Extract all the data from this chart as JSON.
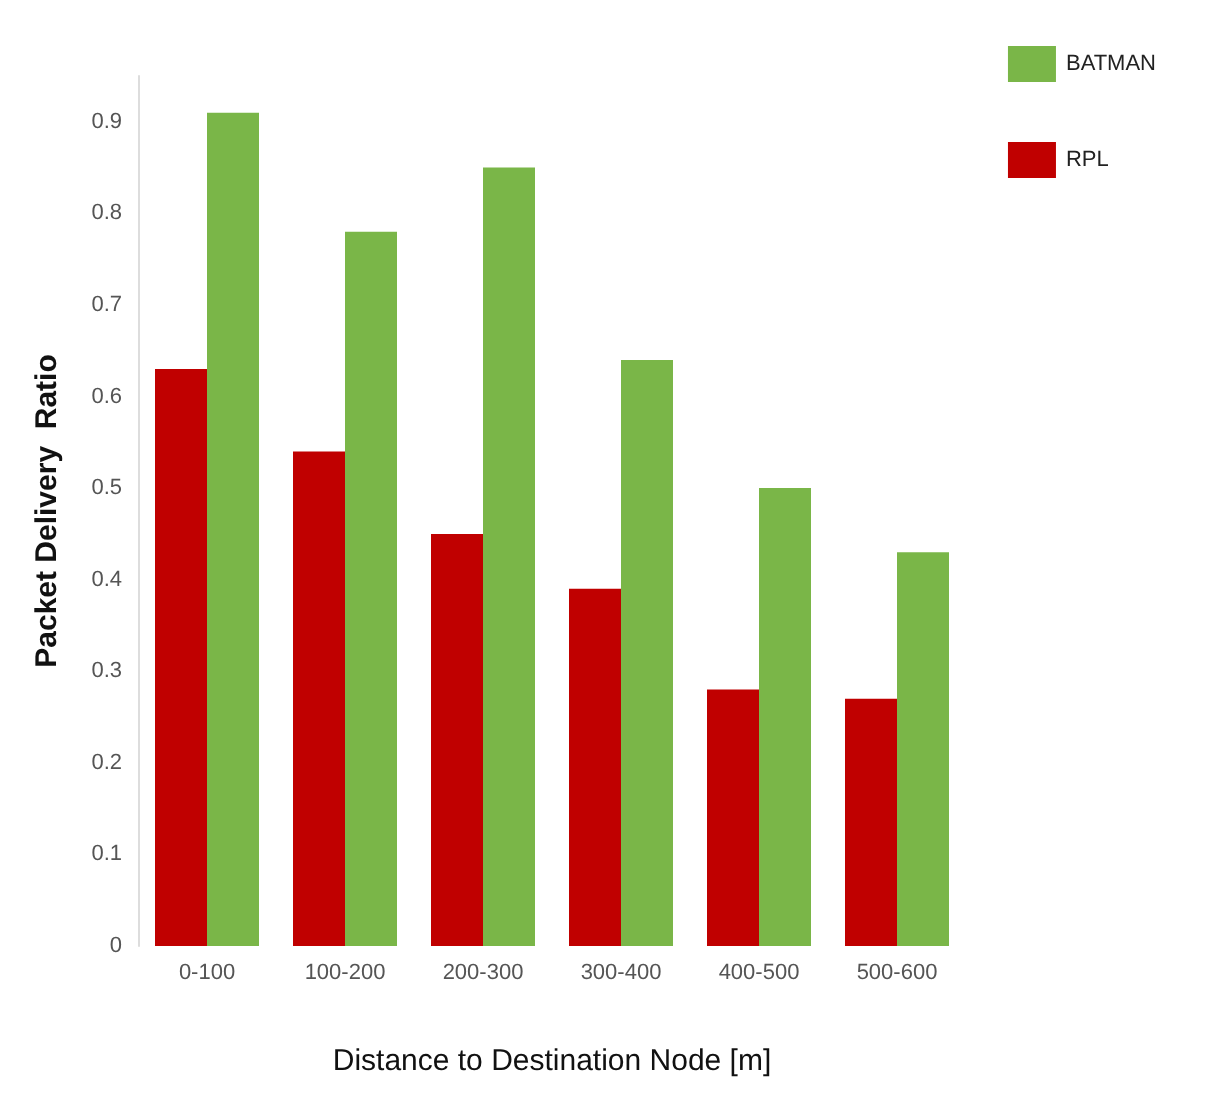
{
  "chart_data": {
    "type": "bar",
    "xlabel": "Distance to Destination Node [m]",
    "ylabel": "Packet Delivery  Ratio",
    "categories": [
      "0-100",
      "100-200",
      "200-300",
      "300-400",
      "400-500",
      "500-600"
    ],
    "series": [
      {
        "name": "RPL",
        "color": "#c00000",
        "values": [
          0.63,
          0.54,
          0.45,
          0.39,
          0.28,
          0.27
        ]
      },
      {
        "name": "BATMAN",
        "color": "#7ab648",
        "values": [
          0.91,
          0.78,
          0.85,
          0.64,
          0.5,
          0.43
        ]
      }
    ],
    "ylim": [
      0,
      0.95
    ],
    "yticks": [
      0,
      0.1,
      0.2,
      0.3,
      0.4,
      0.5,
      0.6,
      0.7,
      0.8,
      0.9
    ],
    "grid": false,
    "legend": "top right"
  }
}
